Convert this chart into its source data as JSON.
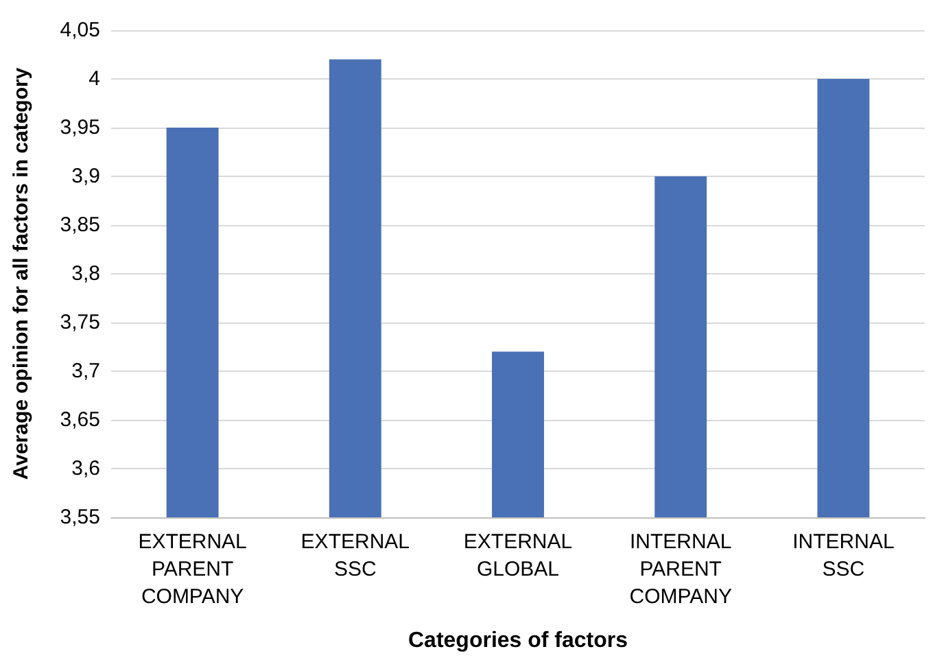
{
  "chart_data": {
    "type": "bar",
    "xlabel": "Categories of factors",
    "ylabel": "Average opinion for all factors in category",
    "categories": [
      "EXTERNAL PARENT COMPANY",
      "EXTERNAL SSC",
      "EXTERNAL GLOBAL",
      "INTERNAL PARENT COMPANY",
      "INTERNAL SSC"
    ],
    "values": [
      3.95,
      4.02,
      3.72,
      3.9,
      4.0
    ],
    "color": "#4a70b6",
    "ylim": [
      3.55,
      4.05
    ],
    "yticks": [
      {
        "value": 3.55,
        "label": "3,55"
      },
      {
        "value": 3.6,
        "label": "3,6"
      },
      {
        "value": 3.65,
        "label": "3,65"
      },
      {
        "value": 3.7,
        "label": "3,7"
      },
      {
        "value": 3.75,
        "label": "3,75"
      },
      {
        "value": 3.8,
        "label": "3,8"
      },
      {
        "value": 3.85,
        "label": "3,85"
      },
      {
        "value": 3.9,
        "label": "3,9"
      },
      {
        "value": 3.95,
        "label": "3,95"
      },
      {
        "value": 4.0,
        "label": "4"
      },
      {
        "value": 4.05,
        "label": "4,05"
      }
    ],
    "grid": "y"
  }
}
